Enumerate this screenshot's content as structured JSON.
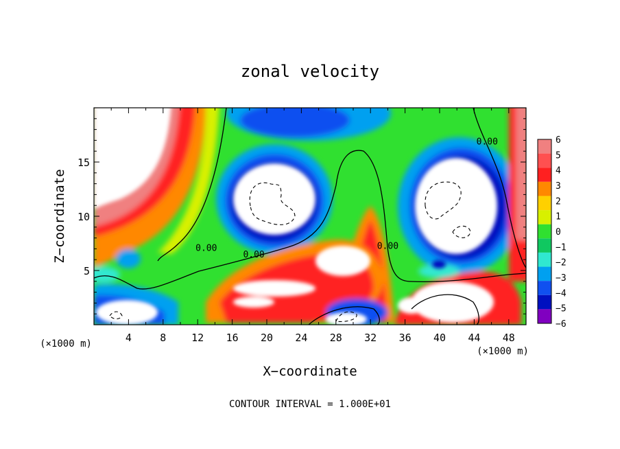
{
  "chart_data": {
    "type": "heatmap",
    "title": "zonal velocity",
    "xlabel": "X−coordinate",
    "ylabel": "Z−coordinate",
    "x_unit_left": "(×1000 m)",
    "x_unit_right": "(×1000 m)",
    "footer": "CONTOUR INTERVAL = 1.000E+01",
    "xlim": [
      0,
      50
    ],
    "ylim": [
      0,
      20
    ],
    "x_ticks": [
      4,
      8,
      12,
      16,
      20,
      24,
      28,
      32,
      36,
      40,
      44,
      48
    ],
    "x_tick_labels": [
      "4",
      "8",
      "12",
      "16",
      "20",
      "24",
      "28",
      "32",
      "36",
      "40",
      "44",
      "48"
    ],
    "y_ticks": [
      5,
      10,
      15
    ],
    "y_tick_labels": [
      "5",
      "10",
      "15"
    ],
    "colorbar": {
      "levels": [
        6,
        5,
        4,
        3,
        2,
        1,
        0,
        -1,
        -2,
        -3,
        -4,
        -5,
        -6
      ],
      "labels": [
        "6",
        "5",
        "4",
        "3",
        "2",
        "1",
        "0",
        "−1",
        "−2",
        "−3",
        "−4",
        "−5",
        "−6"
      ],
      "colors": [
        "#f08080",
        "#ff5050",
        "#ff2020",
        "#ff8800",
        "#ffd000",
        "#d8f000",
        "#30e030",
        "#10c860",
        "#30e8d0",
        "#00a0f0",
        "#1050f0",
        "#0010c0",
        "#8000c0"
      ]
    },
    "contour_labels": [
      {
        "text": "0.00",
        "x": 13,
        "z": 6.8
      },
      {
        "text": "0.00",
        "x": 18.5,
        "z": 6.2
      },
      {
        "text": "0.00",
        "x": 34,
        "z": 7
      },
      {
        "text": "0.00",
        "x": 45.5,
        "z": 16.6
      }
    ]
  }
}
